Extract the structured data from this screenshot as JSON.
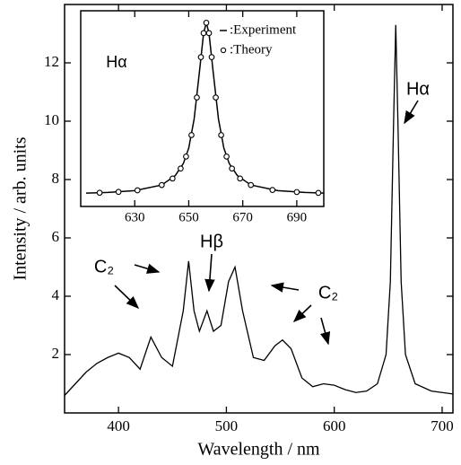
{
  "chart_data": [
    {
      "type": "line",
      "xlabel": "Wavelength / nm",
      "ylabel": "Intensity / arb. units",
      "color": "#000000",
      "xlim": [
        350,
        710
      ],
      "ylim": [
        0,
        14
      ],
      "xticks": [
        400,
        500,
        600,
        700
      ],
      "yticks": [
        2,
        4,
        6,
        8,
        10,
        12
      ],
      "x": [
        350,
        360,
        370,
        380,
        390,
        400,
        410,
        420,
        430,
        440,
        450,
        460,
        465,
        470,
        475,
        482,
        488,
        495,
        502,
        508,
        515,
        525,
        535,
        545,
        552,
        560,
        570,
        580,
        590,
        600,
        610,
        620,
        630,
        640,
        648,
        652,
        655,
        657,
        659,
        662,
        666,
        675,
        690,
        700,
        710
      ],
      "values": [
        0.6,
        1.0,
        1.4,
        1.7,
        1.9,
        2.05,
        1.9,
        1.5,
        2.6,
        1.9,
        1.6,
        3.5,
        5.2,
        3.5,
        2.8,
        3.5,
        2.8,
        3.0,
        4.5,
        5.0,
        3.5,
        1.9,
        1.8,
        2.3,
        2.5,
        2.2,
        1.2,
        0.9,
        1.0,
        0.95,
        0.8,
        0.7,
        0.75,
        1.0,
        2.0,
        4.5,
        10,
        13.3,
        10,
        4.5,
        2.0,
        1.0,
        0.75,
        0.7,
        0.65
      ],
      "annotations": [
        "Hα",
        "Hβ",
        "C₂",
        "C₂"
      ]
    },
    {
      "type": "line",
      "label": "Hα",
      "xlim": [
        610,
        700
      ],
      "ylim": [
        -0.07,
        1.07
      ],
      "xticks": [
        630,
        650,
        670,
        690
      ],
      "legend": "upper right",
      "series": [
        {
          "name": ":Experiment",
          "color": "#000000",
          "marker": "none",
          "x": [
            612,
            620,
            630,
            640,
            645,
            648,
            650,
            652,
            654,
            655.5,
            656.5,
            657.5,
            659,
            661,
            663,
            665,
            668,
            673,
            683,
            693,
            700
          ],
          "values": [
            0.008,
            0.012,
            0.022,
            0.055,
            0.11,
            0.18,
            0.27,
            0.44,
            0.72,
            0.94,
            1.0,
            0.94,
            0.72,
            0.44,
            0.27,
            0.18,
            0.11,
            0.055,
            0.022,
            0.012,
            0.008
          ]
        },
        {
          "name": ":Theory",
          "color": "#000000",
          "marker": "circle",
          "x": [
            617,
            624,
            631,
            640,
            644,
            647,
            649,
            651,
            653,
            654.5,
            655.5,
            656.5,
            657.5,
            658.5,
            660,
            662,
            664,
            666,
            669,
            673,
            681,
            690,
            698
          ],
          "values": [
            0.01,
            0.015,
            0.024,
            0.055,
            0.093,
            0.151,
            0.221,
            0.346,
            0.565,
            0.8,
            0.94,
            1.0,
            0.94,
            0.8,
            0.565,
            0.346,
            0.221,
            0.151,
            0.093,
            0.055,
            0.026,
            0.014,
            0.009
          ]
        }
      ]
    }
  ]
}
